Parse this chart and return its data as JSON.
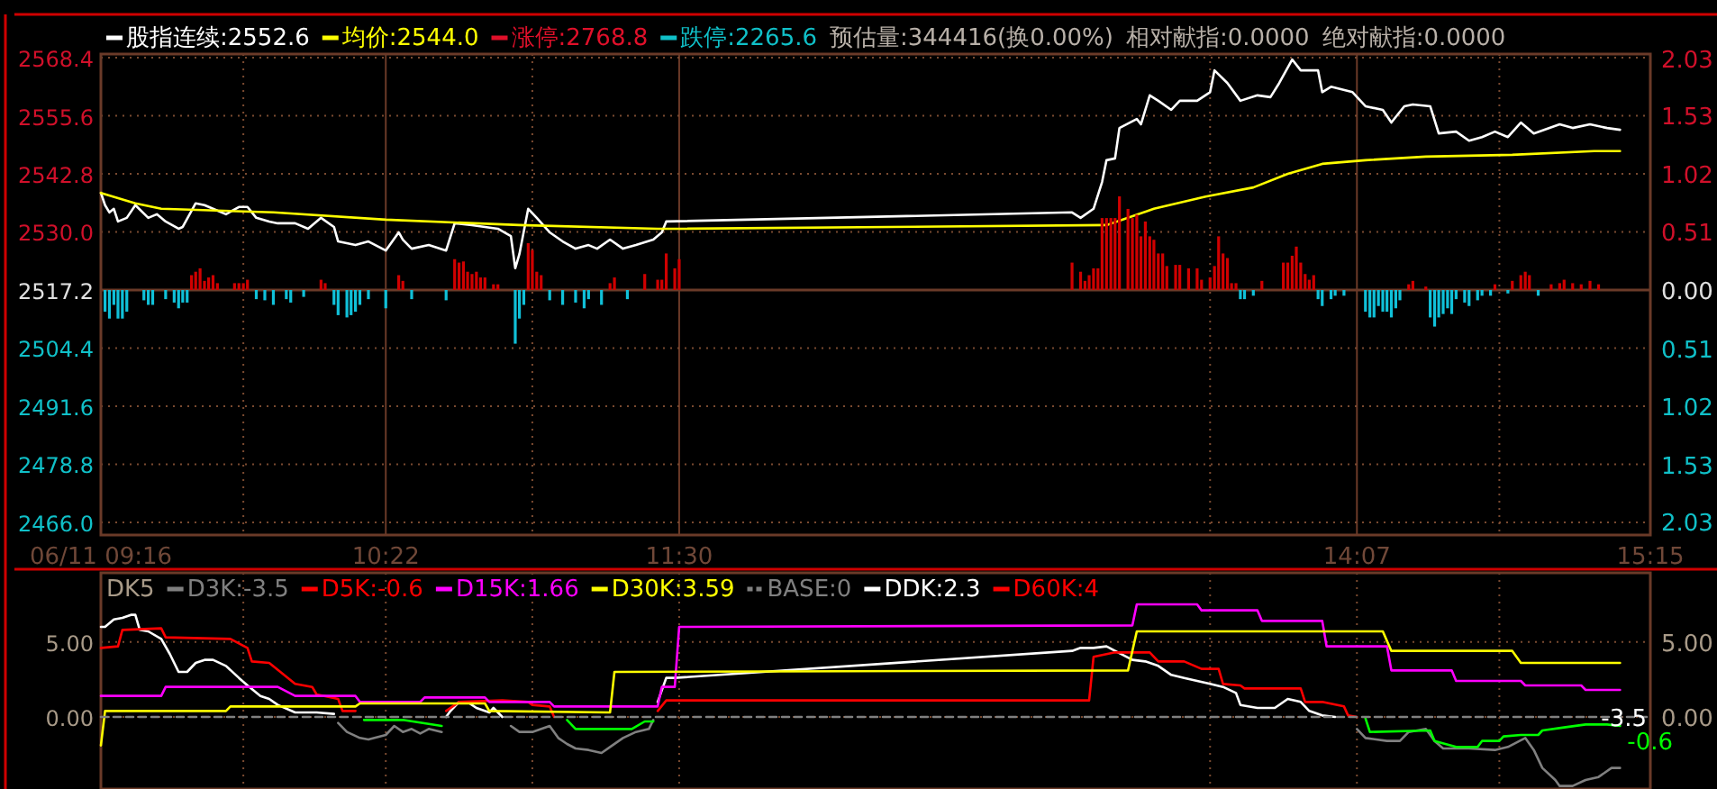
{
  "chart_data": [
    {
      "type": "line",
      "legend": "top left",
      "grid": true,
      "xlim": [
        9.267,
        15.25
      ],
      "xticks": [
        {
          "value": 9.267,
          "label": "06/11 09:16"
        },
        {
          "value": 9.817,
          "label": null
        },
        {
          "value": 10.367,
          "label": "10:22"
        },
        {
          "value": 10.933,
          "label": null
        },
        {
          "value": 11.5,
          "label": "11:30"
        },
        {
          "value": 13.55,
          "label": null
        },
        {
          "value": 14.117,
          "label": "14:07"
        },
        {
          "value": 14.667,
          "label": null
        },
        {
          "value": 15.25,
          "label": "15:15"
        }
      ],
      "ylim": [
        2463.2,
        2569.2
      ],
      "yticks": [
        {
          "value": 2466,
          "label": "2466.0"
        },
        2478.8,
        2491.6,
        2504.4,
        2517.2,
        {
          "value": 2530,
          "label": "2530.0"
        },
        2542.8,
        2555.6,
        2568.4
      ],
      "y2lim": [
        -2.145,
        2.066
      ],
      "y2ticks": [
        {
          "value": -2.03,
          "label": "2.03"
        },
        {
          "value": -1.53,
          "label": "1.53"
        },
        {
          "value": -1.02,
          "label": "1.02"
        },
        {
          "value": -0.51,
          "label": "0.51"
        },
        {
          "value": 0,
          "label": "0.00"
        },
        0.51,
        1.02,
        1.53,
        2.03
      ],
      "ref_lines": [
        {
          "axis": "y2",
          "value": 0,
          "color": "#6a3a28"
        }
      ],
      "series": [
        {
          "name": "股指连续:2552.6",
          "color": "#ffffff",
          "x": [
            9.267,
            9.283,
            9.3,
            9.317,
            9.333,
            9.367,
            9.4,
            9.45,
            9.483,
            9.517,
            9.567,
            9.583,
            9.633,
            9.667,
            9.7,
            9.75,
            9.8,
            9.833,
            9.867,
            9.917,
            9.95,
            10.017,
            10.067,
            10.117,
            10.167,
            10.183,
            10.25,
            10.3,
            10.367,
            10.417,
            10.433,
            10.467,
            10.533,
            10.6,
            10.633,
            10.7,
            10.75,
            10.8,
            10.85,
            10.867,
            10.883,
            10.917,
            10.95,
            11.0,
            11.05,
            11.1,
            11.15,
            11.183,
            11.233,
            11.283,
            11.333,
            11.4,
            11.433,
            11.45,
            13.017,
            13.05,
            13.1,
            13.133,
            13.15,
            13.183,
            13.2,
            13.267,
            13.283,
            13.317,
            13.35,
            13.4,
            13.433,
            13.5,
            13.55,
            13.567,
            13.617,
            13.667,
            13.733,
            13.783,
            13.817,
            13.867,
            13.9,
            13.967,
            13.983,
            14.017,
            14.1,
            14.15,
            14.217,
            14.25,
            14.3,
            14.333,
            14.4,
            14.433,
            14.5,
            14.55,
            14.6,
            14.65,
            14.7,
            14.75,
            14.8,
            14.9,
            14.95,
            15.017,
            15.083,
            15.133
          ],
          "values": [
            2538.6,
            2535.9,
            2534.3,
            2535.1,
            2532.3,
            2533.1,
            2535.9,
            2533.1,
            2533.9,
            2532.3,
            2530.7,
            2531.1,
            2536.3,
            2535.9,
            2535.1,
            2533.9,
            2535.5,
            2535.5,
            2533.1,
            2532.3,
            2531.9,
            2531.9,
            2530.7,
            2533.1,
            2531.1,
            2527.9,
            2527.1,
            2527.9,
            2525.9,
            2529.9,
            2528.3,
            2526.3,
            2527.1,
            2525.9,
            2531.9,
            2531.5,
            2531.1,
            2530.7,
            2529.1,
            2522.0,
            2525.1,
            2535.1,
            2533.1,
            2529.9,
            2527.9,
            2526.3,
            2527.1,
            2526.3,
            2528.3,
            2526.3,
            2527.1,
            2528.3,
            2529.9,
            2532.3,
            2534.3,
            2533.1,
            2535.1,
            2541.0,
            2545.8,
            2546.2,
            2552.9,
            2554.9,
            2553.7,
            2560.1,
            2558.9,
            2556.9,
            2558.9,
            2558.9,
            2560.8,
            2565.6,
            2562.8,
            2558.9,
            2560.1,
            2559.7,
            2562.8,
            2568.0,
            2565.6,
            2565.6,
            2560.8,
            2562.0,
            2560.8,
            2557.7,
            2556.9,
            2554.1,
            2557.7,
            2558.1,
            2557.7,
            2551.7,
            2552.1,
            2550.1,
            2550.9,
            2552.1,
            2550.9,
            2554.1,
            2551.7,
            2553.7,
            2552.9,
            2553.7,
            2552.9,
            2552.5
          ]
        },
        {
          "name": "均价:2544.0",
          "color": "#ffff00",
          "x": [
            9.267,
            9.4,
            9.5,
            9.933,
            10.367,
            10.883,
            11.417,
            11.5,
            13.15,
            13.333,
            13.533,
            13.717,
            13.85,
            13.983,
            14.15,
            14.383,
            14.717,
            15.033,
            15.133
          ],
          "values": [
            2538.6,
            2536.3,
            2535.1,
            2534.3,
            2532.7,
            2531.5,
            2530.7,
            2530.7,
            2531.5,
            2535.1,
            2537.8,
            2539.8,
            2542.8,
            2545.0,
            2545.8,
            2546.6,
            2547.0,
            2547.8,
            2547.8
          ]
        },
        {
          "name": "涨停:2768.8",
          "color": "#e0102a"
        },
        {
          "name": "跌停:2265.6",
          "color": "#10c0c8"
        },
        {
          "type": "bar",
          "axis": "y2",
          "color": "#d00000",
          "x": [
            9.617,
            9.633,
            9.65,
            9.667,
            9.683,
            9.7,
            9.717,
            9.783,
            9.8,
            9.817,
            9.833,
            10.117,
            10.133,
            10.417,
            10.433,
            10.633,
            10.65,
            10.667,
            10.683,
            10.7,
            10.717,
            10.733,
            10.75,
            10.783,
            10.8,
            10.917,
            10.933,
            10.95,
            10.967,
            11.233,
            11.25,
            11.367,
            11.417,
            11.433,
            11.45,
            11.483,
            11.5,
            13.017,
            13.05,
            13.067,
            13.083,
            13.1,
            13.117,
            13.133,
            13.15,
            13.167,
            13.183,
            13.2,
            13.233,
            13.25,
            13.267,
            13.283,
            13.3,
            13.317,
            13.333,
            13.35,
            13.367,
            13.383,
            13.417,
            13.433,
            13.467,
            13.5,
            13.517,
            13.55,
            13.567,
            13.583,
            13.6,
            13.617,
            13.633,
            13.65,
            13.75,
            13.833,
            13.85,
            13.867,
            13.883,
            13.9,
            13.917,
            13.933,
            13.95,
            14.317,
            14.333,
            14.383,
            14.65,
            14.717,
            14.75,
            14.767,
            14.783,
            14.867,
            14.9,
            14.917,
            14.95,
            14.983,
            15.017,
            15.05
          ],
          "values": [
            0.13,
            0.16,
            0.19,
            0.08,
            0.11,
            0.13,
            0.06,
            0.06,
            0.06,
            0.06,
            0.09,
            0.09,
            0.06,
            0.13,
            0.08,
            0.27,
            0.24,
            0.25,
            0.16,
            0.14,
            0.16,
            0.11,
            0.11,
            0.05,
            0.05,
            0.41,
            0.35,
            0.16,
            0.13,
            0.06,
            0.11,
            0.14,
            0.09,
            0.09,
            0.32,
            0.19,
            0.27,
            0.24,
            0.16,
            0.08,
            0.13,
            0.19,
            0.19,
            0.63,
            0.63,
            0.63,
            0.63,
            0.82,
            0.71,
            0.63,
            0.66,
            0.47,
            0.6,
            0.47,
            0.44,
            0.32,
            0.32,
            0.21,
            0.22,
            0.22,
            0.19,
            0.19,
            0.09,
            0.11,
            0.21,
            0.47,
            0.32,
            0.28,
            0.06,
            0.06,
            0.08,
            0.24,
            0.24,
            0.3,
            0.38,
            0.24,
            0.14,
            0.09,
            0.13,
            0.05,
            0.08,
            0.03,
            0.05,
            0.08,
            0.13,
            0.16,
            0.13,
            0.05,
            0.06,
            0.09,
            0.06,
            0.05,
            0.08,
            0.05
          ]
        },
        {
          "type": "bar",
          "axis": "y2",
          "color": "#10c0d8",
          "x": [
            9.283,
            9.3,
            9.317,
            9.333,
            9.35,
            9.367,
            9.433,
            9.45,
            9.467,
            9.517,
            9.55,
            9.567,
            9.583,
            9.6,
            9.867,
            9.9,
            9.933,
            9.983,
            10.0,
            10.05,
            10.167,
            10.183,
            10.217,
            10.233,
            10.25,
            10.267,
            10.3,
            10.367,
            10.467,
            10.6,
            10.867,
            10.883,
            10.9,
            11.0,
            11.05,
            11.1,
            11.133,
            11.15,
            11.2,
            11.3,
            13.667,
            13.683,
            13.717,
            13.967,
            13.983,
            14.017,
            14.033,
            14.067,
            14.15,
            14.167,
            14.183,
            14.2,
            14.217,
            14.233,
            14.25,
            14.267,
            14.283,
            14.4,
            14.417,
            14.433,
            14.45,
            14.467,
            14.483,
            14.5,
            14.533,
            14.55,
            14.583,
            14.6,
            14.633,
            14.7,
            14.817
          ],
          "values": [
            -0.19,
            -0.25,
            -0.13,
            -0.25,
            -0.25,
            -0.19,
            -0.09,
            -0.13,
            -0.13,
            -0.08,
            -0.11,
            -0.16,
            -0.11,
            -0.11,
            -0.08,
            -0.09,
            -0.13,
            -0.08,
            -0.11,
            -0.06,
            -0.13,
            -0.22,
            -0.24,
            -0.22,
            -0.19,
            -0.13,
            -0.08,
            -0.16,
            -0.08,
            -0.09,
            -0.47,
            -0.25,
            -0.13,
            -0.09,
            -0.13,
            -0.11,
            -0.16,
            -0.08,
            -0.13,
            -0.08,
            -0.08,
            -0.08,
            -0.05,
            -0.08,
            -0.14,
            -0.08,
            -0.05,
            -0.05,
            -0.19,
            -0.24,
            -0.24,
            -0.14,
            -0.19,
            -0.19,
            -0.24,
            -0.16,
            -0.09,
            -0.24,
            -0.32,
            -0.24,
            -0.21,
            -0.16,
            -0.21,
            -0.08,
            -0.11,
            -0.14,
            -0.09,
            -0.05,
            -0.05,
            -0.03,
            -0.05
          ]
        }
      ],
      "annotations": [
        "预估量:344416(换0.00%)",
        "相对献指:0.0000",
        "绝对献指:0.0000"
      ]
    },
    {
      "type": "line",
      "title": "DK5",
      "legend": "top left",
      "grid": true,
      "tick_labels": "y",
      "xlim": [
        9.267,
        15.25
      ],
      "xticks": [
        {
          "value": 9.267,
          "label": null
        },
        {
          "value": 9.817,
          "label": null
        },
        {
          "value": 10.367,
          "label": null
        },
        {
          "value": 10.933,
          "label": null
        },
        {
          "value": 11.5,
          "label": null
        },
        {
          "value": 13.55,
          "label": null
        },
        {
          "value": 14.117,
          "label": null
        },
        {
          "value": 14.667,
          "label": null
        },
        {
          "value": 15.25,
          "label": null
        }
      ],
      "ylim": [
        -4.8,
        9.6
      ],
      "yticks": [
        {
          "value": 0,
          "label": "0.00"
        },
        {
          "value": 5,
          "label": "5.00"
        }
      ],
      "y2lim": [
        -4.8,
        9.6
      ],
      "y2ticks": [
        {
          "value": 0,
          "label": "0.00"
        },
        {
          "value": 5,
          "label": "5.00"
        }
      ],
      "series": [
        {
          "name": "D3K:-3.5",
          "color": "#808080",
          "x": [
            10.183,
            10.217,
            10.267,
            10.3,
            10.367,
            10.4,
            10.433,
            10.467,
            10.5,
            10.533,
            10.583,
            null,
            10.85,
            10.883,
            10.933,
            11.0,
            11.033,
            11.067,
            11.1,
            11.15,
            11.2,
            11.233,
            11.283,
            11.333,
            11.383,
            11.4,
            null,
            14.117,
            14.15,
            14.233,
            14.283,
            14.317,
            14.383,
            14.417,
            14.45,
            14.55,
            14.65,
            14.7,
            14.767,
            14.8,
            14.833,
            14.883,
            14.9,
            14.95,
            15.0,
            15.05,
            15.1,
            15.133
          ],
          "values": [
            -0.4,
            -1.0,
            -1.4,
            -1.5,
            -1.2,
            -0.6,
            -1.0,
            -0.8,
            -1.1,
            -0.8,
            -1.0,
            null,
            -0.6,
            -1.0,
            -1.0,
            -0.6,
            -1.4,
            -1.8,
            -2.1,
            -2.2,
            -2.4,
            -2.0,
            -1.4,
            -1.0,
            -0.8,
            -0.2,
            null,
            -0.8,
            -1.4,
            -1.6,
            -1.6,
            -1.0,
            -0.8,
            -1.6,
            -2.1,
            -2.1,
            -2.2,
            -2.0,
            -1.4,
            -2.2,
            -3.4,
            -4.2,
            -4.6,
            -4.6,
            -4.2,
            -4.0,
            -3.4,
            -3.4
          ]
        },
        {
          "color": "#ffffff",
          "x": [
            9.267,
            9.283,
            9.317,
            9.35,
            9.383,
            9.4,
            9.417,
            9.45,
            9.5,
            9.533,
            9.567,
            9.6,
            9.633,
            9.667,
            9.7,
            9.75,
            9.8,
            9.833,
            9.883,
            9.917,
            9.95,
            10.017,
            10.1,
            10.167,
            null,
            10.6,
            10.617,
            10.65,
            10.683,
            10.717,
            10.767,
            10.783,
            10.817,
            null,
            11.417,
            11.45,
            11.483,
            13.017,
            13.05,
            13.1,
            13.15,
            13.183,
            13.25,
            13.3,
            13.35,
            13.4,
            13.45,
            13.5,
            13.55,
            13.6,
            13.65,
            13.667,
            13.733,
            13.8,
            13.85,
            13.9,
            13.933,
            13.983,
            14.033
          ],
          "values": [
            6.0,
            6.0,
            6.5,
            6.6,
            6.8,
            6.8,
            5.8,
            5.7,
            5.2,
            4.2,
            3.0,
            3.0,
            3.6,
            3.8,
            3.8,
            3.4,
            2.6,
            2.1,
            1.4,
            1.2,
            0.8,
            0.3,
            0.3,
            0.2,
            null,
            0.0,
            0.4,
            1.0,
            1.0,
            0.6,
            0.3,
            0.6,
            0.0,
            null,
            1.0,
            2.6,
            2.6,
            4.4,
            4.6,
            4.6,
            4.7,
            4.4,
            3.8,
            3.7,
            3.4,
            2.8,
            2.6,
            2.4,
            2.2,
            2.0,
            1.6,
            0.8,
            0.6,
            0.6,
            1.2,
            1.0,
            0.4,
            0.1,
            0.0
          ]
        },
        {
          "name": "D5K:-0.6",
          "color": "#ff0000",
          "x": [
            9.267,
            9.333,
            9.35,
            9.5,
            9.517,
            9.767,
            9.833,
            9.85,
            9.917,
            10.017,
            10.083,
            10.1,
            10.183,
            10.2,
            10.25,
            null,
            10.6,
            10.65,
            10.817,
            10.917,
            10.933,
            11.0,
            11.017,
            null,
            11.417,
            11.45,
            13.083,
            13.1,
            13.183,
            13.317,
            13.35,
            13.45,
            13.517,
            13.583,
            13.6,
            13.667,
            13.683,
            13.9,
            13.917,
            13.983,
            14.067,
            14.083,
            14.117
          ],
          "values": [
            4.6,
            4.7,
            5.8,
            5.9,
            5.3,
            5.2,
            4.6,
            3.7,
            3.6,
            2.2,
            2.0,
            1.5,
            1.2,
            0.4,
            0.4,
            null,
            0.4,
            1.0,
            1.1,
            1.0,
            0.8,
            0.7,
            0.0,
            null,
            0.4,
            1.1,
            1.1,
            4.0,
            4.3,
            4.3,
            3.7,
            3.7,
            3.2,
            3.2,
            2.2,
            2.1,
            1.9,
            1.9,
            1.0,
            1.0,
            0.7,
            0.1,
            0.0
          ]
        },
        {
          "color": "#00ff00",
          "x": [
            10.283,
            10.333,
            10.433,
            10.583,
            null,
            11.067,
            11.1,
            11.317,
            11.367,
            11.4,
            null,
            14.15,
            14.167,
            14.4,
            14.417,
            14.5,
            14.583,
            14.6,
            14.667,
            14.683,
            14.75,
            14.817,
            14.833,
            14.917,
            15.0,
            15.083,
            15.133
          ],
          "values": [
            -0.2,
            -0.2,
            -0.2,
            -0.6,
            null,
            -0.2,
            -0.8,
            -0.8,
            -0.3,
            -0.3,
            null,
            -0.1,
            -1.0,
            -0.9,
            -1.6,
            -2.0,
            -2.0,
            -1.6,
            -1.6,
            -1.3,
            -1.2,
            -1.2,
            -0.9,
            -0.7,
            -0.5,
            -0.5,
            -0.6
          ],
          "value_labels": [
            null,
            null,
            null,
            null,
            null,
            null,
            null,
            null,
            null,
            null,
            null,
            null,
            null,
            null,
            null,
            null,
            null,
            null,
            null,
            null,
            null,
            null,
            null,
            null,
            null,
            null,
            "-0.6"
          ]
        },
        {
          "name": "D15K:1.66",
          "color": "#ff00ff",
          "x": [
            9.267,
            9.5,
            9.517,
            9.95,
            10.017,
            10.25,
            10.267,
            10.5,
            10.517,
            10.75,
            10.767,
            11.0,
            11.017,
            11.417,
            11.433,
            11.483,
            11.5,
            13.25,
            13.267,
            13.5,
            13.517,
            13.733,
            13.75,
            13.983,
            14.0,
            14.233,
            14.25,
            14.483,
            14.5,
            14.75,
            14.767,
            14.983,
            15.0,
            15.133
          ],
          "values": [
            1.4,
            1.4,
            2.0,
            2.0,
            1.4,
            1.4,
            1.0,
            1.0,
            1.3,
            1.3,
            1.0,
            1.0,
            0.7,
            0.7,
            2.0,
            2.0,
            6.0,
            6.1,
            7.5,
            7.5,
            7.1,
            7.1,
            6.4,
            6.4,
            4.7,
            4.7,
            3.1,
            3.1,
            2.4,
            2.4,
            2.1,
            2.1,
            1.8,
            1.8
          ]
        },
        {
          "name": "D30K:3.59",
          "color": "#ffff00",
          "x": [
            9.267,
            9.283,
            9.75,
            9.767,
            10.25,
            10.267,
            10.75,
            10.767,
            11.233,
            11.25,
            13.233,
            13.267,
            14.217,
            14.25,
            14.717,
            14.75,
            15.133
          ],
          "values": [
            -1.9,
            0.4,
            0.4,
            0.7,
            0.7,
            0.9,
            0.9,
            0.4,
            0.3,
            3.0,
            3.1,
            5.7,
            5.7,
            4.4,
            4.4,
            3.6,
            3.6
          ]
        },
        {
          "name": "BASE:0",
          "color": "#808080",
          "line_style": "dashed",
          "x": [
            9.267,
            15.25
          ],
          "values": [
            0,
            0
          ]
        },
        {
          "name": "DDK:2.3",
          "color": "#ffffff"
        },
        {
          "name": "D60K:4",
          "color": "#ff0000"
        }
      ],
      "annotations": [
        {
          "text": "-3.5",
          "x": 15.25,
          "y": 0
        }
      ]
    }
  ]
}
